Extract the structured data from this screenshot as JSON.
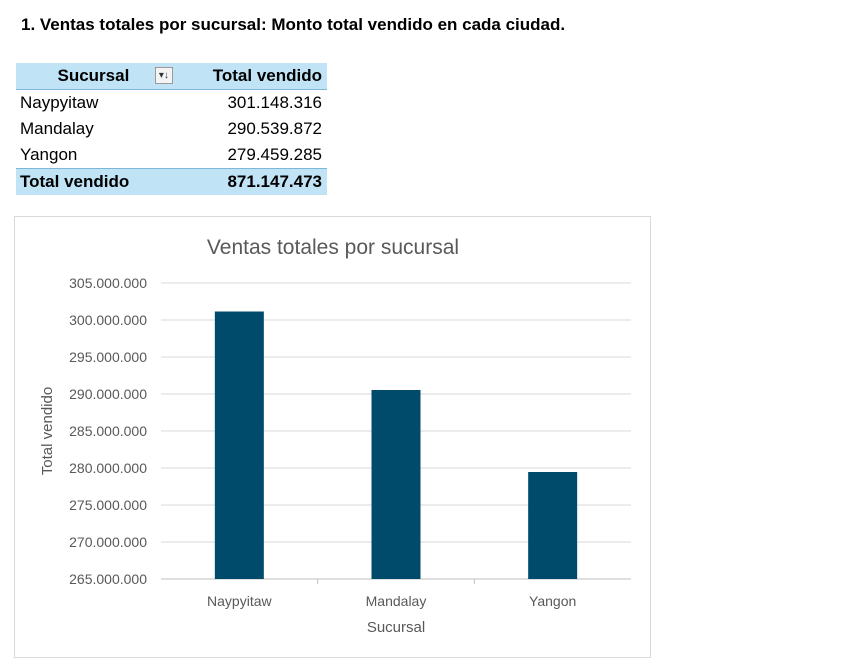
{
  "heading": "1. Ventas totales por sucursal: Monto total vendido en cada ciudad.",
  "pivot": {
    "header_row": "Sucursal",
    "header_value": "Total vendido",
    "filter_icon": "filter-sort-icon",
    "rows": [
      {
        "label": "Naypyitaw",
        "value": "301.148.316"
      },
      {
        "label": "Mandalay",
        "value": "290.539.872"
      },
      {
        "label": "Yangon",
        "value": "279.459.285"
      }
    ],
    "total_label": "Total vendido",
    "total_value": "871.147.473"
  },
  "chart_data": {
    "type": "bar",
    "title": "Ventas totales por sucursal",
    "xlabel": "Sucursal",
    "ylabel": "Total vendido",
    "categories": [
      "Naypyitaw",
      "Mandalay",
      "Yangon"
    ],
    "values": [
      301148316,
      290539872,
      279459285
    ],
    "ylim": [
      265000000,
      305000000
    ],
    "yticks": [
      "265.000.000",
      "270.000.000",
      "275.000.000",
      "280.000.000",
      "285.000.000",
      "290.000.000",
      "295.000.000",
      "300.000.000",
      "305.000.000"
    ],
    "grid": true,
    "bar_color": "#004b6b"
  }
}
